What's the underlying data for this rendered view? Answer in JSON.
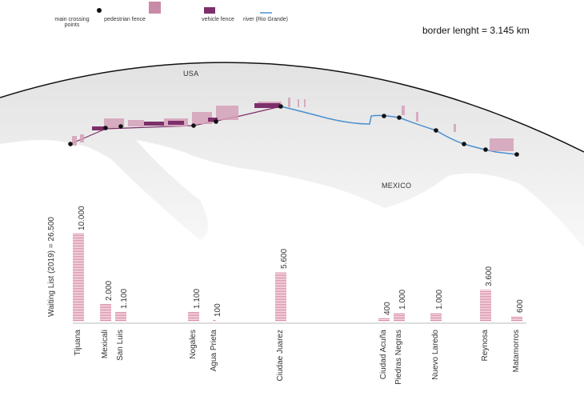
{
  "legend": [
    {
      "label": "main crossing points",
      "icon": "black-dot",
      "color": "#111111"
    },
    {
      "label": "pedestrian fence",
      "icon": "pink-rect",
      "color": "#c98aa8"
    },
    {
      "label": "vehicle fence",
      "icon": "purple-rect",
      "color": "#7d2f6a"
    },
    {
      "label": "river (Rio Grande)",
      "icon": "blue-line",
      "color": "#4a90d0"
    }
  ],
  "summary": "border lenght = 3.145 km",
  "map_labels": {
    "usa": "USA",
    "mexico": "MEXICO"
  },
  "chart_data": {
    "type": "bar",
    "title": "",
    "ylabel": "Waiting  List  (2019)  =  26.500",
    "xlabel": "",
    "categories": [
      "Tijuana",
      "Mexicali",
      "San Luis",
      "Nogales",
      "Agua Prieta",
      "Ciudae Juarez",
      "Ciudad Acuña",
      "Piedras Negras",
      "Nuevo Laredo",
      "Reynosa",
      "Matamorros"
    ],
    "values": [
      10000,
      2000,
      1100,
      1100,
      100,
      5600,
      400,
      1000,
      1000,
      3600,
      600
    ],
    "value_labels": [
      "10.000",
      "2.000",
      "1.100",
      "1.100",
      "100",
      "5.600",
      "400",
      "1.000",
      "1.000",
      "3.600",
      "600"
    ],
    "ylim": [
      0,
      10000
    ],
    "grid": false,
    "bar_color": "#d98aa6"
  }
}
